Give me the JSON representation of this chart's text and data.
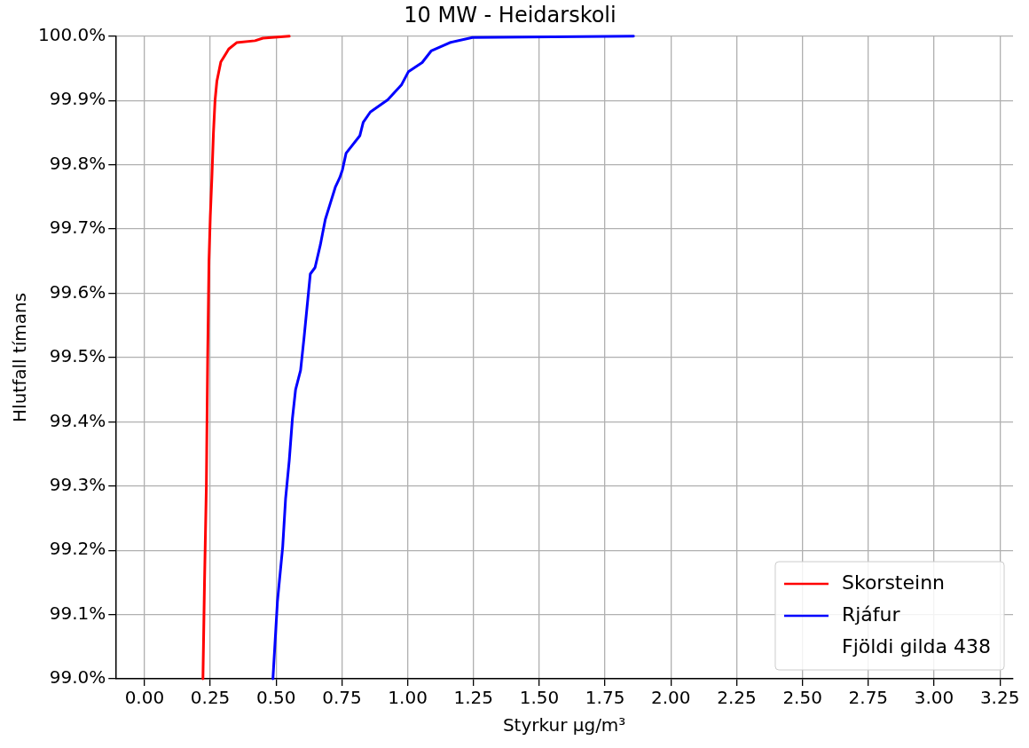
{
  "chart_data": {
    "type": "line",
    "title": "10 MW - Heidarskoli",
    "xlabel": "Styrkur μg/m³",
    "ylabel": "Hlutfall tímans",
    "series": [
      {
        "name": "Skorsteinn",
        "color": "#ff0000",
        "x": [
          0.222,
          0.228,
          0.235,
          0.24,
          0.245,
          0.25,
          0.256,
          0.262,
          0.268,
          0.275,
          0.29,
          0.32,
          0.35,
          0.42,
          0.45,
          0.55
        ],
        "values": [
          99.0,
          99.15,
          99.3,
          99.5,
          99.65,
          99.72,
          99.78,
          99.85,
          99.9,
          99.93,
          99.96,
          99.98,
          99.99,
          99.993,
          99.997,
          100.0
        ]
      },
      {
        "name": "Rjáfur",
        "color": "#0000ff",
        "x": [
          0.488,
          0.505,
          0.525,
          0.536,
          0.55,
          0.562,
          0.574,
          0.593,
          0.606,
          0.618,
          0.63,
          0.648,
          0.668,
          0.687,
          0.706,
          0.725,
          0.742,
          0.752,
          0.766,
          0.818,
          0.831,
          0.858,
          0.924,
          0.976,
          1.003,
          1.055,
          1.089,
          1.16,
          1.246,
          1.858
        ],
        "values": [
          99.0,
          99.12,
          99.205,
          99.28,
          99.34,
          99.405,
          99.45,
          99.48,
          99.53,
          99.58,
          99.63,
          99.64,
          99.675,
          99.715,
          99.74,
          99.765,
          99.78,
          99.792,
          99.818,
          99.845,
          99.866,
          99.882,
          99.901,
          99.924,
          99.945,
          99.959,
          99.977,
          99.99,
          99.998,
          100.0
        ]
      }
    ],
    "annotations": [
      "Fjöldi gilda 438"
    ],
    "xlim": [
      -0.11,
      3.3
    ],
    "xticks": [
      {
        "value": 0,
        "label": "0.00"
      },
      {
        "value": 0.25,
        "label": "0.25"
      },
      {
        "value": 0.5,
        "label": "0.50"
      },
      {
        "value": 0.75,
        "label": "0.75"
      },
      {
        "value": 1,
        "label": "1.00"
      },
      {
        "value": 1.25,
        "label": "1.25"
      },
      {
        "value": 1.5,
        "label": "1.50"
      },
      {
        "value": 1.75,
        "label": "1.75"
      },
      {
        "value": 2,
        "label": "2.00"
      },
      {
        "value": 2.25,
        "label": "2.25"
      },
      {
        "value": 2.5,
        "label": "2.50"
      },
      {
        "value": 2.75,
        "label": "2.75"
      },
      {
        "value": 3,
        "label": "3.00"
      },
      {
        "value": 3.25,
        "label": "3.25"
      }
    ],
    "ylim": [
      99.0,
      100.0
    ],
    "yticks": [
      {
        "value": 99.0,
        "label": "99.0%"
      },
      {
        "value": 99.1,
        "label": "99.1%"
      },
      {
        "value": 99.2,
        "label": "99.2%"
      },
      {
        "value": 99.3,
        "label": "99.3%"
      },
      {
        "value": 99.4,
        "label": "99.4%"
      },
      {
        "value": 99.5,
        "label": "99.5%"
      },
      {
        "value": 99.6,
        "label": "99.6%"
      },
      {
        "value": 99.7,
        "label": "99.7%"
      },
      {
        "value": 99.8,
        "label": "99.8%"
      },
      {
        "value": 99.9,
        "label": "99.9%"
      },
      {
        "value": 100.0,
        "label": "100.0%"
      }
    ],
    "grid": true,
    "legend": "bottom right",
    "marker": "none",
    "line_style": "solid"
  }
}
